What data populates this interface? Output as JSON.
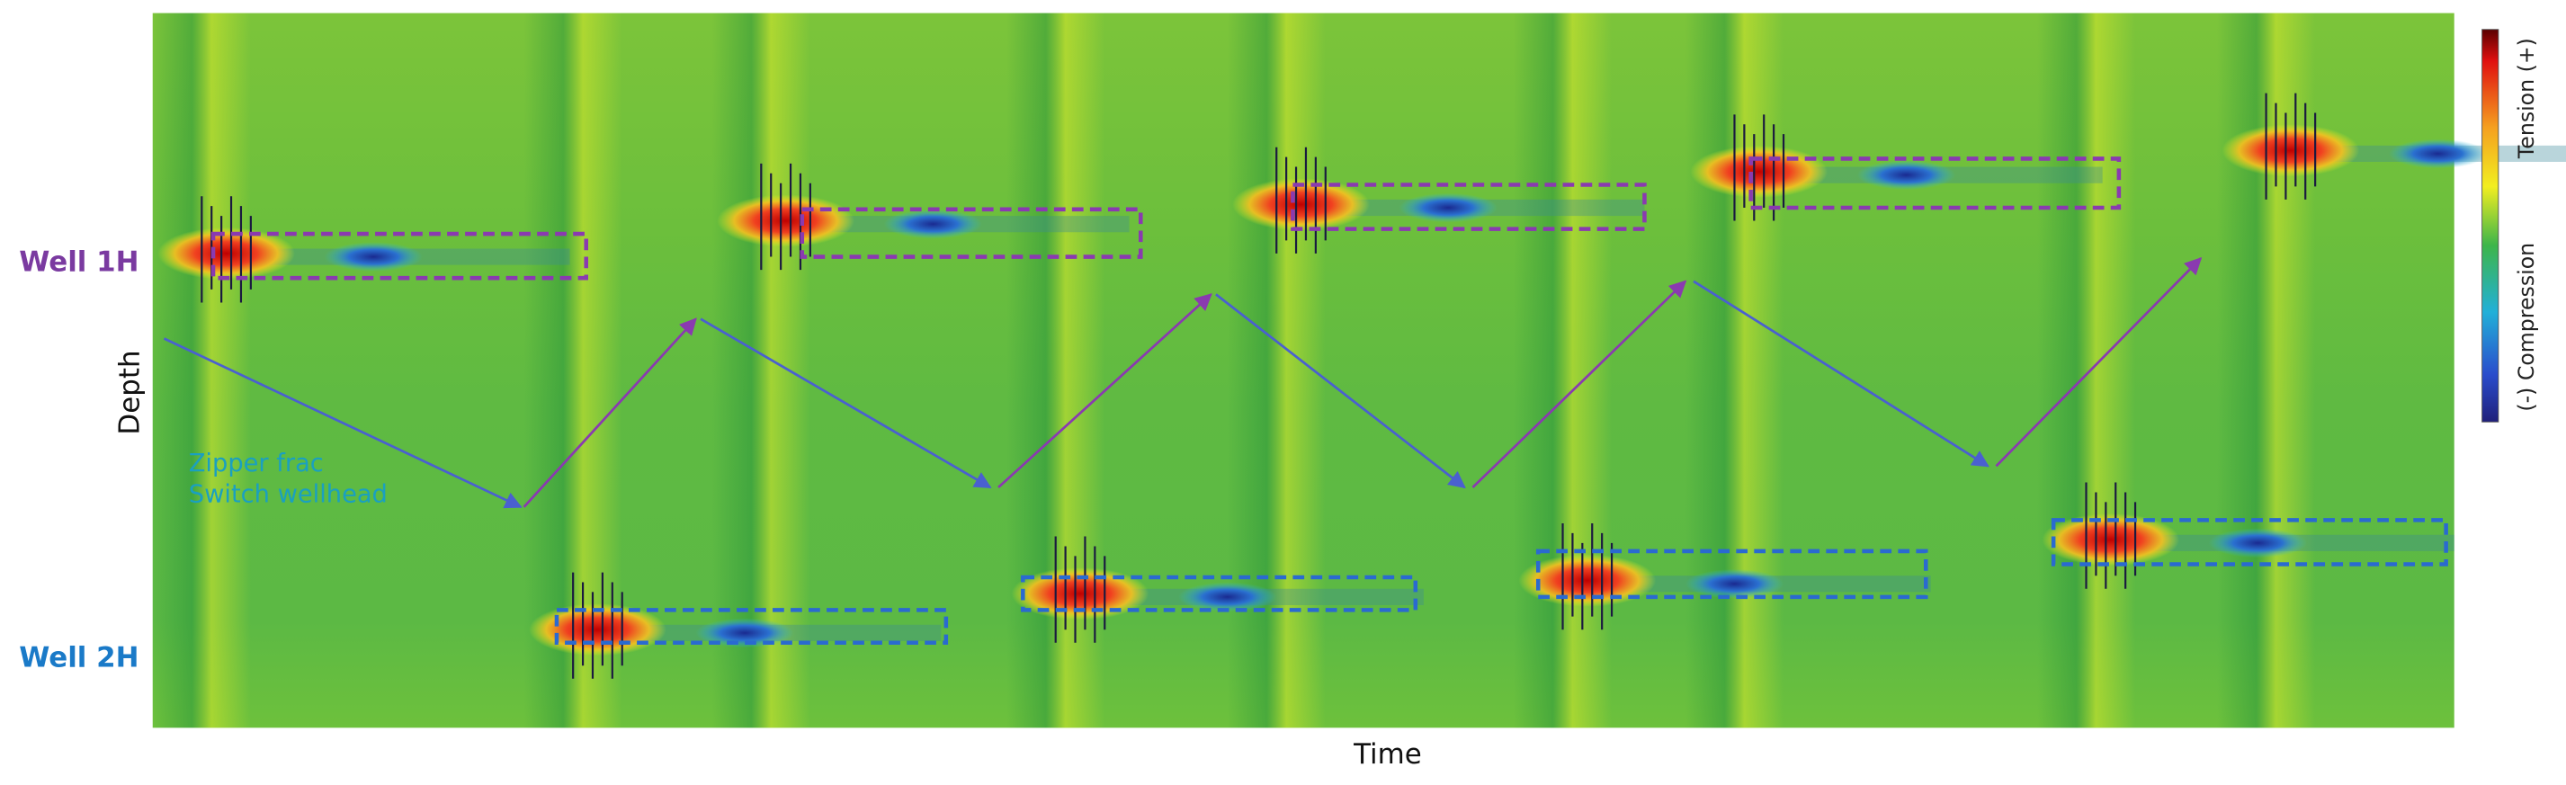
{
  "chart_data": {
    "type": "heatmap",
    "xlabel": "Time",
    "ylabel": "Depth",
    "row_labels": [
      "Well 1H",
      "Well 2H"
    ],
    "annotations": [
      "Zipper frac",
      "Switch wellhead"
    ],
    "colorbar_labels": [
      "Tension (+)",
      "(-) Compression"
    ]
  }
}
